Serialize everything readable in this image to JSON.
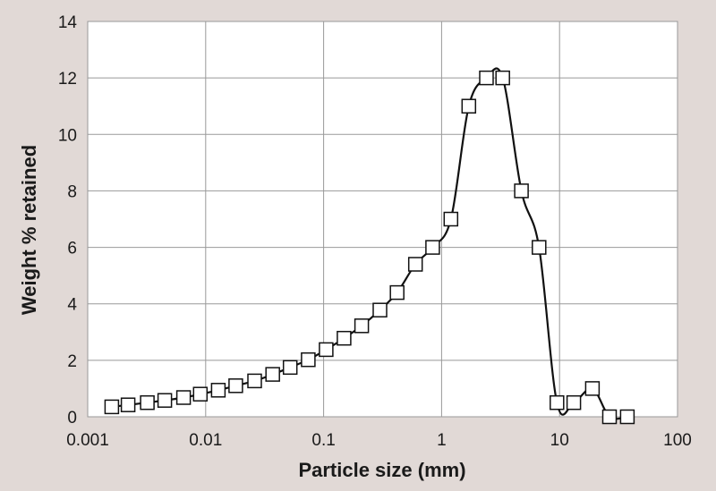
{
  "chart_data": {
    "type": "scatter",
    "title": "",
    "xlabel": "Particle size (mm)",
    "ylabel": "Weight % retained",
    "xscale": "log",
    "xlim": [
      0.001,
      100
    ],
    "ylim": [
      0,
      14
    ],
    "x_ticks": [
      "0.001",
      "0.01",
      "0.1",
      "1",
      "10",
      "100"
    ],
    "y_ticks": [
      "0",
      "2",
      "4",
      "6",
      "8",
      "10",
      "12",
      "14"
    ],
    "grid": true,
    "legend": "none",
    "marker": "open-square",
    "line": "smooth",
    "series": [
      {
        "x": [
          0.0016,
          0.0022,
          0.0032,
          0.0045,
          0.0065,
          0.009,
          0.0128,
          0.018,
          0.026,
          0.037,
          0.052,
          0.074,
          0.105,
          0.149,
          0.21,
          0.3,
          0.42,
          0.6,
          0.84,
          1.2,
          1.7,
          2.4,
          3.3,
          4.75,
          6.7,
          9.5,
          13.2,
          19,
          26.5,
          37.5
        ],
        "y": [
          0.35,
          0.42,
          0.5,
          0.58,
          0.68,
          0.8,
          0.94,
          1.1,
          1.27,
          1.5,
          1.75,
          2.02,
          2.38,
          2.78,
          3.22,
          3.78,
          4.4,
          5.4,
          6.0,
          7.0,
          11.0,
          12.0,
          12.0,
          8.0,
          6.0,
          0.5,
          0.5,
          1.0,
          0.0,
          0.0
        ]
      }
    ]
  }
}
